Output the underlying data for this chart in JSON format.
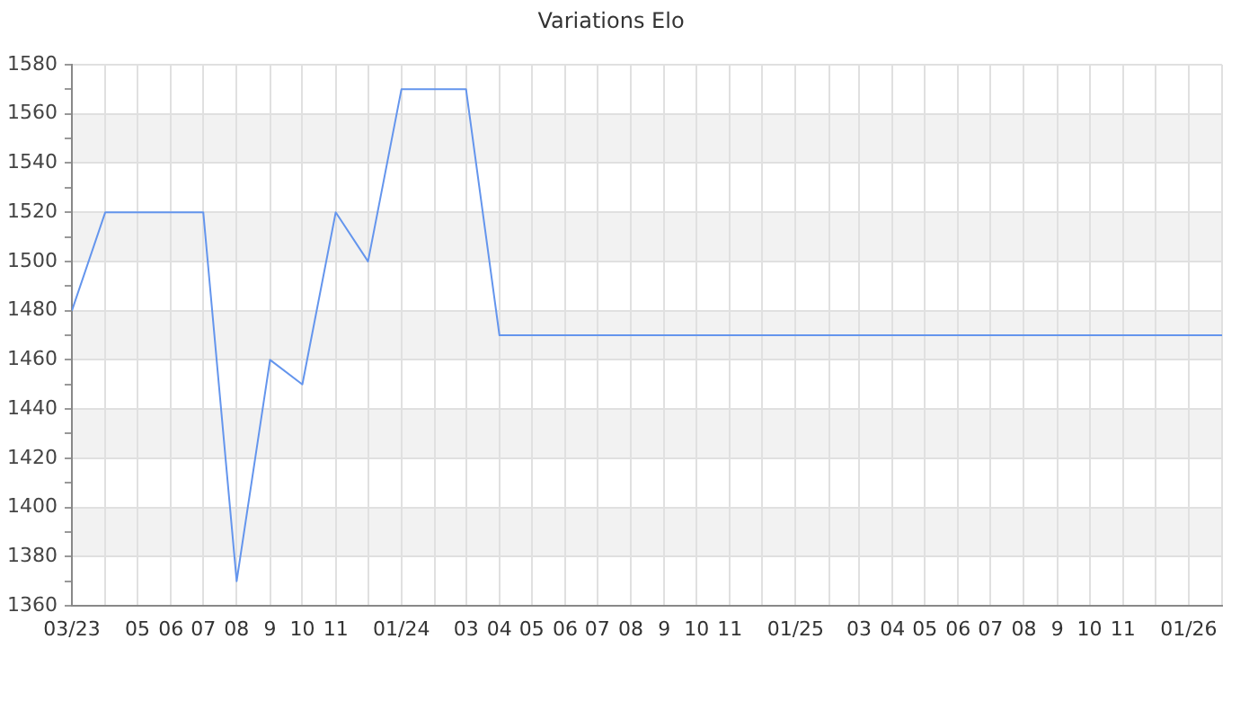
{
  "chart_data": {
    "type": "line",
    "title": "Variations Elo",
    "x": [
      "2023-03",
      "2023-04",
      "2023-05",
      "2023-06",
      "2023-07",
      "2023-08",
      "2023-09",
      "2023-10",
      "2023-11",
      "2023-12",
      "2024-01",
      "2024-02",
      "2024-03",
      "2024-04",
      "2024-05",
      "2024-06",
      "2024-07",
      "2024-08",
      "2024-09",
      "2024-10",
      "2024-11",
      "2024-12",
      "2025-01",
      "2025-02",
      "2025-03",
      "2025-04",
      "2025-05",
      "2025-06",
      "2025-07",
      "2025-08",
      "2025-09",
      "2025-10",
      "2025-11",
      "2025-12",
      "2026-01",
      "2026-02"
    ],
    "series": [
      {
        "color": "#6495ed",
        "values": [
          1480,
          1520,
          1520,
          1520,
          1520,
          1370,
          1460,
          1450,
          1520,
          1500,
          1570,
          1570,
          1570,
          1470,
          1470,
          1470,
          1470,
          1470,
          1470,
          1470,
          1470,
          1470,
          1470,
          1470,
          1470,
          1470,
          1470,
          1470,
          1470,
          1470,
          1470,
          1470,
          1470,
          1470,
          1470,
          1470
        ]
      }
    ],
    "xlim": [
      "2023-03",
      "2026-02"
    ],
    "ylim": [
      1360,
      1580
    ],
    "xticks": [
      {
        "value": "2023-03",
        "label": "03/23"
      },
      {
        "value": "2023-04",
        "label": null
      },
      {
        "value": "2023-05",
        "label": "05"
      },
      {
        "value": "2023-06",
        "label": "06"
      },
      {
        "value": "2023-07",
        "label": "07"
      },
      {
        "value": "2023-08",
        "label": "08"
      },
      {
        "value": "2023-09",
        "label": "9"
      },
      {
        "value": "2023-10",
        "label": "10"
      },
      {
        "value": "2023-11",
        "label": "11"
      },
      {
        "value": "2023-12",
        "label": null
      },
      {
        "value": "2024-01",
        "label": "01/24"
      },
      {
        "value": "2024-02",
        "label": null
      },
      {
        "value": "2024-03",
        "label": "03"
      },
      {
        "value": "2024-04",
        "label": "04"
      },
      {
        "value": "2024-05",
        "label": "05"
      },
      {
        "value": "2024-06",
        "label": "06"
      },
      {
        "value": "2024-07",
        "label": "07"
      },
      {
        "value": "2024-08",
        "label": "08"
      },
      {
        "value": "2024-09",
        "label": "9"
      },
      {
        "value": "2024-10",
        "label": "10"
      },
      {
        "value": "2024-11",
        "label": "11"
      },
      {
        "value": "2024-12",
        "label": null
      },
      {
        "value": "2025-01",
        "label": "01/25"
      },
      {
        "value": "2025-02",
        "label": null
      },
      {
        "value": "2025-03",
        "label": "03"
      },
      {
        "value": "2025-04",
        "label": "04"
      },
      {
        "value": "2025-05",
        "label": "05"
      },
      {
        "value": "2025-06",
        "label": "06"
      },
      {
        "value": "2025-07",
        "label": "07"
      },
      {
        "value": "2025-08",
        "label": "08"
      },
      {
        "value": "2025-09",
        "label": "9"
      },
      {
        "value": "2025-10",
        "label": "10"
      },
      {
        "value": "2025-11",
        "label": "11"
      },
      {
        "value": "2025-12",
        "label": null
      },
      {
        "value": "2026-01",
        "label": "01/26"
      },
      {
        "value": "2026-02",
        "label": null
      }
    ],
    "yticks": [
      1360,
      {
        "value": 1370,
        "label": null
      },
      1380,
      {
        "value": 1390,
        "label": null
      },
      1400,
      {
        "value": 1410,
        "label": null
      },
      1420,
      {
        "value": 1430,
        "label": null
      },
      1440,
      {
        "value": 1450,
        "label": null
      },
      1460,
      {
        "value": 1470,
        "label": null
      },
      1480,
      {
        "value": 1490,
        "label": null
      },
      1500,
      {
        "value": 1510,
        "label": null
      },
      1520,
      {
        "value": 1530,
        "label": null
      },
      1540,
      {
        "value": 1550,
        "label": null
      },
      1560,
      {
        "value": 1570,
        "label": null
      },
      1580
    ],
    "grid": true,
    "marker": "none"
  }
}
